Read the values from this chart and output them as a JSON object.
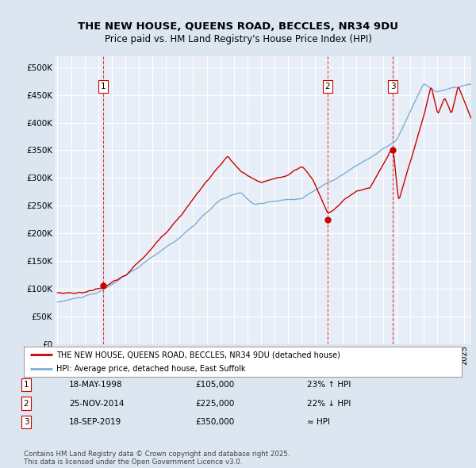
{
  "title": "THE NEW HOUSE, QUEENS ROAD, BECCLES, NR34 9DU",
  "subtitle": "Price paid vs. HM Land Registry's House Price Index (HPI)",
  "background_color": "#dce6f0",
  "plot_bg_color": "#e8eef7",
  "red_color": "#cc0000",
  "blue_color": "#7bafd4",
  "grid_color": "#ffffff",
  "ylim": [
    0,
    520000
  ],
  "ytick_labels": [
    "£0",
    "£50K",
    "£100K",
    "£150K",
    "£200K",
    "£250K",
    "£300K",
    "£350K",
    "£400K",
    "£450K",
    "£500K"
  ],
  "xlim_start": 1994.8,
  "xlim_end": 2025.5,
  "transaction1_x": 1998.38,
  "transaction1_y": 105000,
  "transaction1_label": "1",
  "transaction2_x": 2014.9,
  "transaction2_y": 225000,
  "transaction2_label": "2",
  "transaction3_x": 2019.72,
  "transaction3_y": 350000,
  "transaction3_label": "3",
  "legend_entry1": "THE NEW HOUSE, QUEENS ROAD, BECCLES, NR34 9DU (detached house)",
  "legend_entry2": "HPI: Average price, detached house, East Suffolk",
  "table_row1": [
    "1",
    "18-MAY-1998",
    "£105,000",
    "23% ↑ HPI"
  ],
  "table_row2": [
    "2",
    "25-NOV-2014",
    "£225,000",
    "22% ↓ HPI"
  ],
  "table_row3": [
    "3",
    "18-SEP-2019",
    "£350,000",
    "≈ HPI"
  ],
  "footnote": "Contains HM Land Registry data © Crown copyright and database right 2025.\nThis data is licensed under the Open Government Licence v3.0."
}
